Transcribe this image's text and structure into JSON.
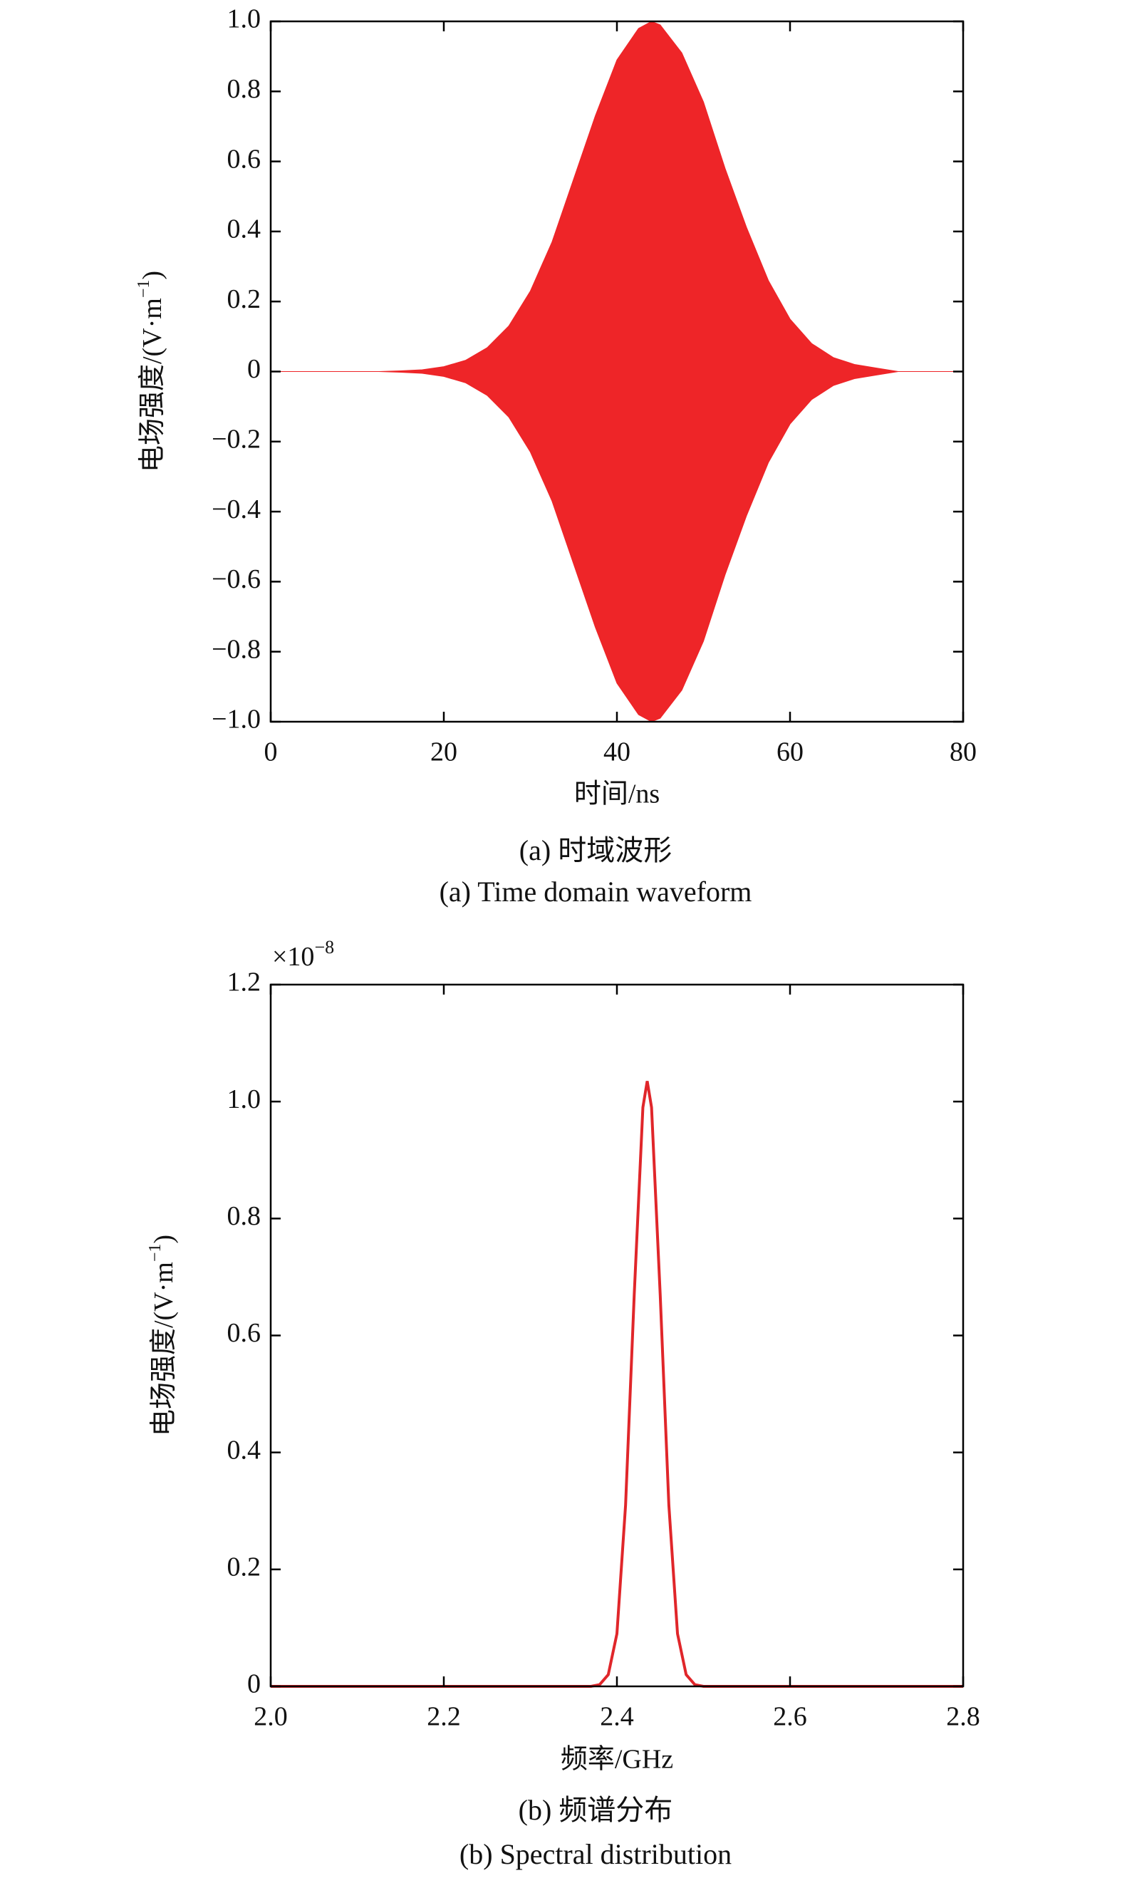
{
  "chart_data": [
    {
      "type": "area",
      "xlabel": "时间/ns",
      "ylabel": "电场强度/(V·m",
      "ylabel_sup": "−1",
      "ylabel_end": ")",
      "caption_cn": "(a) 时域波形",
      "caption_en": "(a) Time domain waveform",
      "x": [
        0,
        2.5,
        5,
        7.5,
        10,
        12.5,
        15,
        17.5,
        20,
        22.5,
        25,
        27.5,
        30,
        32.5,
        35,
        37.5,
        40,
        42.5,
        44,
        45,
        47.5,
        50,
        52.5,
        55,
        57.5,
        60,
        62.5,
        65,
        67.5,
        70,
        72.5,
        75,
        77.5,
        80
      ],
      "series": [
        {
          "color": "#ee2528",
          "values": [
            0,
            0,
            0,
            0,
            0,
            0,
            0.002,
            0.005,
            0.014,
            0.032,
            0.068,
            0.13,
            0.23,
            0.37,
            0.55,
            0.73,
            0.89,
            0.98,
            1.0,
            0.99,
            0.91,
            0.77,
            0.58,
            0.41,
            0.26,
            0.15,
            0.08,
            0.04,
            0.02,
            0.01,
            0,
            0,
            0,
            0
          ]
        },
        {
          "color": "#ee2528",
          "values": [
            0,
            0,
            0,
            0,
            0,
            0,
            -0.002,
            -0.005,
            -0.014,
            -0.032,
            -0.068,
            -0.13,
            -0.23,
            -0.37,
            -0.55,
            -0.73,
            -0.89,
            -0.98,
            -1.0,
            -0.99,
            -0.91,
            -0.77,
            -0.58,
            -0.41,
            -0.26,
            -0.15,
            -0.08,
            -0.04,
            -0.02,
            -0.01,
            0,
            0,
            0,
            0
          ]
        }
      ],
      "xlim": [
        0,
        80
      ],
      "xticks": [
        0,
        20,
        40,
        60,
        80
      ],
      "ylim": [
        -1,
        1
      ],
      "yticks": [
        {
          "value": -1,
          "label": "−1.0"
        },
        {
          "value": -0.8,
          "label": "−0.8"
        },
        {
          "value": -0.6,
          "label": "−0.6"
        },
        {
          "value": -0.4,
          "label": "−0.4"
        },
        {
          "value": -0.2,
          "label": "−0.2"
        },
        0,
        0.2,
        0.4,
        0.6,
        0.8,
        {
          "value": 1,
          "label": "1.0"
        }
      ]
    },
    {
      "type": "line",
      "xlabel": "频率/GHz",
      "ylabel": "电场强度/(V·m",
      "ylabel_sup": "−1",
      "ylabel_end": ")",
      "caption_cn": "(b) 频谱分布",
      "caption_en": "(b) Spectral distribution",
      "offset_text": "×10",
      "offset_exponent": "−8",
      "x": [
        2.0,
        2.37,
        2.38,
        2.39,
        2.4,
        2.41,
        2.42,
        2.43,
        2.435,
        2.44,
        2.45,
        2.46,
        2.47,
        2.48,
        2.49,
        2.5,
        2.8
      ],
      "series": [
        {
          "color": "#e0262a",
          "values": [
            0,
            0,
            0.003,
            0.02,
            0.09,
            0.31,
            0.67,
            0.99,
            1.035,
            0.99,
            0.67,
            0.31,
            0.09,
            0.02,
            0.003,
            0,
            0
          ]
        }
      ],
      "xlim": [
        2.0,
        2.8
      ],
      "xticks": [
        {
          "value": 2.0,
          "label": "2.0"
        },
        2.2,
        2.4,
        2.6,
        2.8
      ],
      "ylim": [
        0,
        1.2
      ],
      "yticks": [
        0,
        0.2,
        0.4,
        0.6,
        0.8,
        {
          "value": 1.0,
          "label": "1.0"
        },
        1.2
      ]
    }
  ]
}
